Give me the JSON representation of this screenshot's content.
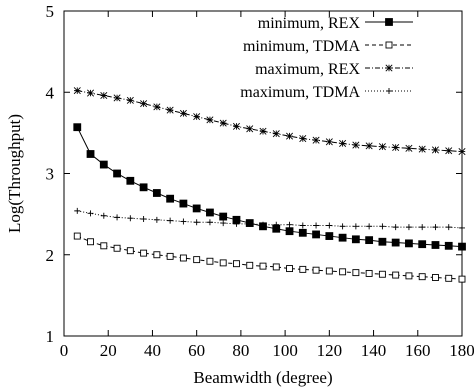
{
  "chart_data": {
    "type": "line",
    "title": "",
    "xlabel": "Beamwidth (degree)",
    "ylabel": "Log(Throughput)",
    "xlim": [
      0,
      180
    ],
    "ylim": [
      1,
      5
    ],
    "xticks": [
      0,
      20,
      40,
      60,
      80,
      100,
      120,
      140,
      160,
      180
    ],
    "yticks": [
      1,
      2,
      3,
      4,
      5
    ],
    "grid": false,
    "legend_position": "top-right",
    "x": [
      6,
      12,
      18,
      24,
      30,
      36,
      42,
      48,
      54,
      60,
      66,
      72,
      78,
      84,
      90,
      96,
      102,
      108,
      114,
      120,
      126,
      132,
      138,
      144,
      150,
      156,
      162,
      168,
      174,
      180
    ],
    "series": [
      {
        "name": "minimum, REX",
        "marker": "filled-square",
        "dash": "solid",
        "values": [
          3.57,
          3.24,
          3.11,
          3.0,
          2.91,
          2.83,
          2.76,
          2.69,
          2.63,
          2.57,
          2.52,
          2.47,
          2.43,
          2.39,
          2.35,
          2.32,
          2.29,
          2.27,
          2.25,
          2.23,
          2.21,
          2.19,
          2.18,
          2.16,
          2.15,
          2.14,
          2.13,
          2.12,
          2.11,
          2.1
        ]
      },
      {
        "name": "minimum, TDMA",
        "marker": "open-square",
        "dash": "dashed",
        "values": [
          2.23,
          2.16,
          2.11,
          2.08,
          2.05,
          2.02,
          2.0,
          1.98,
          1.96,
          1.94,
          1.92,
          1.9,
          1.89,
          1.87,
          1.86,
          1.85,
          1.83,
          1.82,
          1.81,
          1.8,
          1.79,
          1.78,
          1.77,
          1.76,
          1.75,
          1.74,
          1.73,
          1.72,
          1.71,
          1.7
        ]
      },
      {
        "name": "maximum, REX",
        "marker": "star",
        "dash": "dashdot",
        "values": [
          4.02,
          3.99,
          3.96,
          3.93,
          3.9,
          3.86,
          3.82,
          3.78,
          3.74,
          3.7,
          3.66,
          3.62,
          3.58,
          3.55,
          3.52,
          3.49,
          3.46,
          3.43,
          3.41,
          3.39,
          3.37,
          3.35,
          3.34,
          3.33,
          3.32,
          3.31,
          3.3,
          3.29,
          3.28,
          3.27
        ]
      },
      {
        "name": "maximum, TDMA",
        "marker": "plus",
        "dash": "dotted",
        "values": [
          2.54,
          2.51,
          2.48,
          2.46,
          2.45,
          2.44,
          2.43,
          2.42,
          2.41,
          2.4,
          2.4,
          2.39,
          2.38,
          2.38,
          2.37,
          2.37,
          2.37,
          2.36,
          2.36,
          2.36,
          2.35,
          2.35,
          2.35,
          2.35,
          2.34,
          2.34,
          2.34,
          2.34,
          2.34,
          2.33
        ]
      }
    ]
  }
}
